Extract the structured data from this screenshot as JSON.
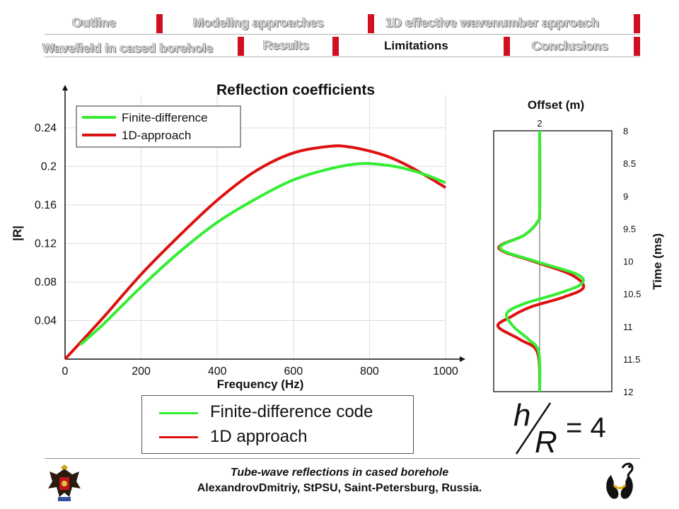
{
  "nav": {
    "row1": [
      {
        "label": "Outline",
        "name": "nav-outline"
      },
      {
        "label": "Modeling approaches",
        "name": "nav-modeling-approaches"
      },
      {
        "label": "1D effective wavenumber approach",
        "name": "nav-1d-effective-wavenumber"
      }
    ],
    "row2": [
      {
        "label": "Wavefield in cased borehole",
        "name": "nav-wavefield"
      },
      {
        "label": "Results",
        "name": "nav-results"
      },
      {
        "label": "Limitations",
        "name": "nav-limitations",
        "active": true
      },
      {
        "label": "Conclusions",
        "name": "nav-conclusions"
      }
    ]
  },
  "chart_data": [
    {
      "type": "line",
      "title": "Reflection coefficients",
      "xlabel": "Frequency (Hz)",
      "ylabel": "|R|",
      "xlim": [
        0,
        1000
      ],
      "ylim": [
        0,
        0.27
      ],
      "xticks": [
        0,
        200,
        400,
        600,
        800,
        1000
      ],
      "yticks": [
        0.04,
        0.08,
        0.12,
        0.16,
        0.2,
        0.24
      ],
      "legend_position": "top-left",
      "series": [
        {
          "name": "Finite-difference",
          "color": "#33ee33",
          "x": [
            40,
            100,
            200,
            300,
            400,
            500,
            600,
            700,
            780,
            850,
            900,
            950,
            1000
          ],
          "y": [
            0.015,
            0.036,
            0.075,
            0.111,
            0.142,
            0.166,
            0.186,
            0.198,
            0.203,
            0.201,
            0.197,
            0.191,
            0.183
          ]
        },
        {
          "name": "1D-approach",
          "color": "#dd1111",
          "x": [
            0,
            100,
            200,
            300,
            400,
            500,
            600,
            700,
            750,
            800,
            850,
            900,
            950,
            1000
          ],
          "y": [
            0.0,
            0.043,
            0.088,
            0.128,
            0.165,
            0.195,
            0.214,
            0.221,
            0.22,
            0.216,
            0.21,
            0.201,
            0.19,
            0.178
          ]
        }
      ]
    },
    {
      "type": "line",
      "xlabel": "Offset (m)",
      "ylabel": "Time (ms)",
      "x_tick_label": "2",
      "ylim": [
        8,
        12
      ],
      "yticks": [
        "8",
        "8.5",
        "9",
        "9.5",
        "10",
        "10.5",
        "11",
        "11.5",
        "12"
      ],
      "grid": false,
      "series": [
        {
          "name": "Finite-difference",
          "color": "#33ee33",
          "t": [
            8,
            9.2,
            9.4,
            9.6,
            9.8,
            10.0,
            10.2,
            10.35,
            10.5,
            10.65,
            10.8,
            11.0,
            11.2,
            11.4,
            12
          ],
          "amp": [
            0,
            0,
            -0.05,
            -0.35,
            -0.9,
            -0.1,
            0.85,
            0.95,
            0.4,
            -0.35,
            -0.75,
            -0.6,
            -0.25,
            -0.02,
            0
          ]
        },
        {
          "name": "1D approach",
          "color": "#dd1111",
          "t": [
            8,
            9.2,
            9.4,
            9.6,
            9.8,
            10.0,
            10.2,
            10.4,
            10.55,
            10.7,
            10.85,
            11.0,
            11.2,
            11.4,
            12
          ],
          "amp": [
            0,
            0,
            -0.05,
            -0.35,
            -0.93,
            -0.15,
            0.7,
            1.0,
            0.55,
            -0.2,
            -0.65,
            -0.95,
            -0.45,
            -0.05,
            0
          ]
        }
      ]
    }
  ],
  "legend": {
    "fd_label": "Finite-difference code",
    "oned_label": "1D approach",
    "fd_color": "#33ee33",
    "oned_color": "#dd1111"
  },
  "formula": {
    "numerator": "h",
    "denominator": "R",
    "equals": "= 4"
  },
  "footer": {
    "title": "Tube-wave reflections in cased borehole",
    "author": "AlexandrovDmitriy, StPSU, Saint-Petersburg, Russia."
  }
}
